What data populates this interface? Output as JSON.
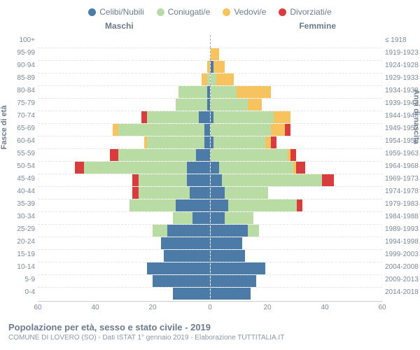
{
  "legend": [
    {
      "label": "Celibi/Nubili",
      "color": "#4d7ba8"
    },
    {
      "label": "Coniugati/e",
      "color": "#b8dca3"
    },
    {
      "label": "Vedovi/e",
      "color": "#f7c35f"
    },
    {
      "label": "Divorziati/e",
      "color": "#d93c3c"
    }
  ],
  "header_male": "Maschi",
  "header_female": "Femmine",
  "y_left_title": "Fasce di età",
  "y_right_title": "Anni di nascita",
  "x_max": 60,
  "x_ticks": [
    60,
    40,
    20,
    0,
    20,
    40,
    60
  ],
  "title": "Popolazione per età, sesso e stato civile - 2019",
  "subtitle": "COMUNE DI LOVERO (SO) - Dati ISTAT 1° gennaio 2019 - Elaborazione TUTTITALIA.IT",
  "colors": {
    "single": "#4d7ba8",
    "married": "#b8dca3",
    "widow": "#f7c35f",
    "divorced": "#d93c3c"
  },
  "rows": [
    {
      "age": "100+",
      "birth": "≤ 1918",
      "m": [
        0,
        0,
        0,
        0
      ],
      "f": [
        0,
        0,
        0,
        0
      ]
    },
    {
      "age": "95-99",
      "birth": "1919-1923",
      "m": [
        0,
        0,
        0,
        0
      ],
      "f": [
        0,
        0,
        3,
        0
      ]
    },
    {
      "age": "90-94",
      "birth": "1924-1928",
      "m": [
        0,
        0,
        1,
        0
      ],
      "f": [
        1,
        0,
        4,
        0
      ]
    },
    {
      "age": "85-89",
      "birth": "1929-1933",
      "m": [
        0,
        1,
        2,
        0
      ],
      "f": [
        0,
        2,
        6,
        0
      ]
    },
    {
      "age": "80-84",
      "birth": "1934-1938",
      "m": [
        1,
        10,
        0,
        0
      ],
      "f": [
        0,
        9,
        12,
        0
      ]
    },
    {
      "age": "75-79",
      "birth": "1939-1943",
      "m": [
        1,
        11,
        0,
        0
      ],
      "f": [
        0,
        13,
        5,
        0
      ]
    },
    {
      "age": "70-74",
      "birth": "1944-1948",
      "m": [
        4,
        18,
        0,
        2
      ],
      "f": [
        1,
        21,
        6,
        0
      ]
    },
    {
      "age": "65-69",
      "birth": "1949-1953",
      "m": [
        2,
        30,
        2,
        0
      ],
      "f": [
        0,
        21,
        5,
        2
      ]
    },
    {
      "age": "60-64",
      "birth": "1954-1958",
      "m": [
        2,
        20,
        1,
        0
      ],
      "f": [
        1,
        18,
        2,
        2
      ]
    },
    {
      "age": "55-59",
      "birth": "1959-1963",
      "m": [
        5,
        27,
        0,
        3
      ],
      "f": [
        0,
        27,
        1,
        2
      ]
    },
    {
      "age": "50-54",
      "birth": "1964-1968",
      "m": [
        8,
        36,
        0,
        3
      ],
      "f": [
        3,
        26,
        1,
        3
      ]
    },
    {
      "age": "45-49",
      "birth": "1969-1973",
      "m": [
        8,
        17,
        0,
        2
      ],
      "f": [
        4,
        35,
        0,
        4
      ]
    },
    {
      "age": "40-44",
      "birth": "1974-1978",
      "m": [
        7,
        18,
        0,
        2
      ],
      "f": [
        5,
        15,
        0,
        0
      ]
    },
    {
      "age": "35-39",
      "birth": "1979-1983",
      "m": [
        12,
        16,
        0,
        0
      ],
      "f": [
        6,
        24,
        0,
        2
      ]
    },
    {
      "age": "30-34",
      "birth": "1984-1988",
      "m": [
        6,
        7,
        0,
        0
      ],
      "f": [
        5,
        10,
        0,
        0
      ]
    },
    {
      "age": "25-29",
      "birth": "1989-1993",
      "m": [
        15,
        5,
        0,
        0
      ],
      "f": [
        13,
        4,
        0,
        0
      ]
    },
    {
      "age": "20-24",
      "birth": "1994-1998",
      "m": [
        17,
        0,
        0,
        0
      ],
      "f": [
        11,
        0,
        0,
        0
      ]
    },
    {
      "age": "15-19",
      "birth": "1999-2003",
      "m": [
        16,
        0,
        0,
        0
      ],
      "f": [
        12,
        0,
        0,
        0
      ]
    },
    {
      "age": "10-14",
      "birth": "2004-2008",
      "m": [
        22,
        0,
        0,
        0
      ],
      "f": [
        19,
        0,
        0,
        0
      ]
    },
    {
      "age": "5-9",
      "birth": "2009-2013",
      "m": [
        20,
        0,
        0,
        0
      ],
      "f": [
        16,
        0,
        0,
        0
      ]
    },
    {
      "age": "0-4",
      "birth": "2014-2018",
      "m": [
        13,
        0,
        0,
        0
      ],
      "f": [
        14,
        0,
        0,
        0
      ]
    }
  ]
}
